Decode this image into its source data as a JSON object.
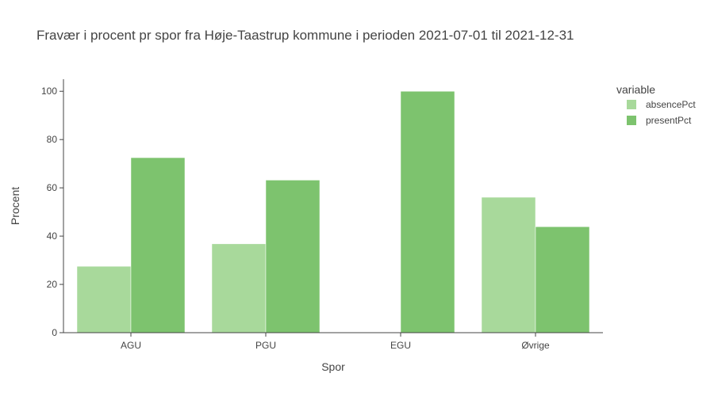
{
  "chart_data": {
    "type": "bar",
    "title": "Fravær i procent pr spor fra Høje-Taastrup kommune i perioden 2021-07-01 til 2021-12-31",
    "xlabel": "Spor",
    "ylabel": "Procent",
    "categories": [
      "AGU",
      "PGU",
      "EGU",
      "Øvrige"
    ],
    "series": [
      {
        "name": "absencePct",
        "values": [
          27.5,
          36.8,
          0,
          56.1
        ],
        "color": "#a8d99b"
      },
      {
        "name": "presentPct",
        "values": [
          72.5,
          63.2,
          100,
          43.9
        ],
        "color": "#7dc36e"
      }
    ],
    "ylim": [
      0,
      105
    ],
    "yticks": [
      0,
      20,
      40,
      60,
      80,
      100
    ],
    "legend_title": "variable",
    "legend_position": "top-right",
    "grid": false
  }
}
